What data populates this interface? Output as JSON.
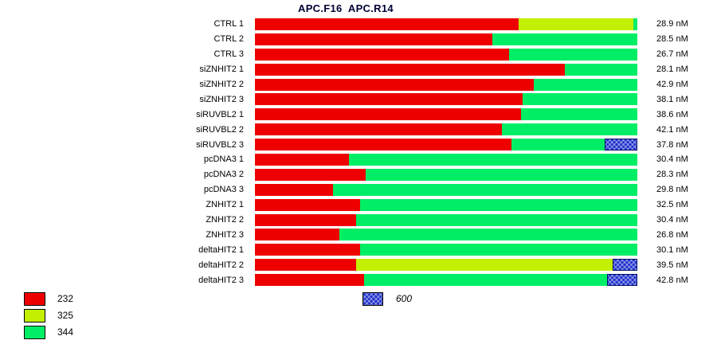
{
  "title": "APC.F16  APC.R14",
  "chart_data": {
    "type": "bar",
    "orientation": "horizontal",
    "stacked": true,
    "value_unit": "nM",
    "title": "APC.F16  APC.R14",
    "legend_position": "bottom-left",
    "colors": {
      "232": "#ee0000",
      "325": "#c2f000",
      "344": "#00ee66",
      "600": "#2233cc"
    },
    "legend": [
      {
        "key": "232",
        "label": "232"
      },
      {
        "key": "325",
        "label": "325"
      },
      {
        "key": "344",
        "label": "344"
      }
    ],
    "legend_600": {
      "key": "600",
      "label": "600"
    },
    "rows": [
      {
        "label": "CTRL 1",
        "value": "28.9 nM",
        "segments": [
          {
            "key": "232",
            "pct": 69
          },
          {
            "key": "325",
            "pct": 30
          },
          {
            "key": "344",
            "pct": 1
          }
        ]
      },
      {
        "label": "CTRL 2",
        "value": "28.5 nM",
        "segments": [
          {
            "key": "232",
            "pct": 62
          },
          {
            "key": "344",
            "pct": 38
          }
        ]
      },
      {
        "label": "CTRL 3",
        "value": "26.7 nM",
        "segments": [
          {
            "key": "232",
            "pct": 66.5
          },
          {
            "key": "344",
            "pct": 33.5
          }
        ]
      },
      {
        "label": "siZNHIT2 1",
        "value": "28.1 nM",
        "segments": [
          {
            "key": "232",
            "pct": 81
          },
          {
            "key": "344",
            "pct": 19
          }
        ]
      },
      {
        "label": "siZNHIT2 2",
        "value": "42.9 nM",
        "segments": [
          {
            "key": "232",
            "pct": 73
          },
          {
            "key": "344",
            "pct": 27
          }
        ]
      },
      {
        "label": "siZNHIT2 3",
        "value": "38.1 nM",
        "segments": [
          {
            "key": "232",
            "pct": 70
          },
          {
            "key": "344",
            "pct": 30
          }
        ]
      },
      {
        "label": "siRUVBL2 1",
        "value": "38.6 nM",
        "segments": [
          {
            "key": "232",
            "pct": 69.5
          },
          {
            "key": "344",
            "pct": 30.5
          }
        ]
      },
      {
        "label": "siRUVBL2 2",
        "value": "42.1 nM",
        "segments": [
          {
            "key": "232",
            "pct": 64.5
          },
          {
            "key": "344",
            "pct": 35.5
          }
        ]
      },
      {
        "label": "siRUVBL2 3",
        "value": "37.8 nM",
        "segments": [
          {
            "key": "232",
            "pct": 67
          },
          {
            "key": "344",
            "pct": 24.5
          },
          {
            "key": "600",
            "pct": 8.5
          }
        ]
      },
      {
        "label": "pcDNA3 1",
        "value": "30.4 nM",
        "segments": [
          {
            "key": "232",
            "pct": 24.5
          },
          {
            "key": "344",
            "pct": 75.5
          }
        ]
      },
      {
        "label": "pcDNA3 2",
        "value": "28.3 nM",
        "segments": [
          {
            "key": "232",
            "pct": 29
          },
          {
            "key": "344",
            "pct": 71
          }
        ]
      },
      {
        "label": "pcDNA3 3",
        "value": "29.8 nM",
        "segments": [
          {
            "key": "232",
            "pct": 20.5
          },
          {
            "key": "344",
            "pct": 79.5
          }
        ]
      },
      {
        "label": "ZNHIT2 1",
        "value": "32.5 nM",
        "segments": [
          {
            "key": "232",
            "pct": 27.5
          },
          {
            "key": "344",
            "pct": 72.5
          }
        ]
      },
      {
        "label": "ZNHIT2 2",
        "value": "30.4 nM",
        "segments": [
          {
            "key": "232",
            "pct": 26.5
          },
          {
            "key": "344",
            "pct": 73.5
          }
        ]
      },
      {
        "label": "ZNHIT2 3",
        "value": "26.8 nM",
        "segments": [
          {
            "key": "232",
            "pct": 22
          },
          {
            "key": "344",
            "pct": 78
          }
        ]
      },
      {
        "label": "deltaHIT2 1",
        "value": "30.1 nM",
        "segments": [
          {
            "key": "232",
            "pct": 27.5
          },
          {
            "key": "344",
            "pct": 72.5
          }
        ]
      },
      {
        "label": "deltaHIT2 2",
        "value": "39.5 nM",
        "segments": [
          {
            "key": "232",
            "pct": 26.5
          },
          {
            "key": "325",
            "pct": 67
          },
          {
            "key": "600",
            "pct": 6.5
          }
        ]
      },
      {
        "label": "deltaHIT2 3",
        "value": "42.8 nM",
        "segments": [
          {
            "key": "232",
            "pct": 28.5
          },
          {
            "key": "344",
            "pct": 63.5
          },
          {
            "key": "600",
            "pct": 8
          }
        ]
      }
    ]
  }
}
